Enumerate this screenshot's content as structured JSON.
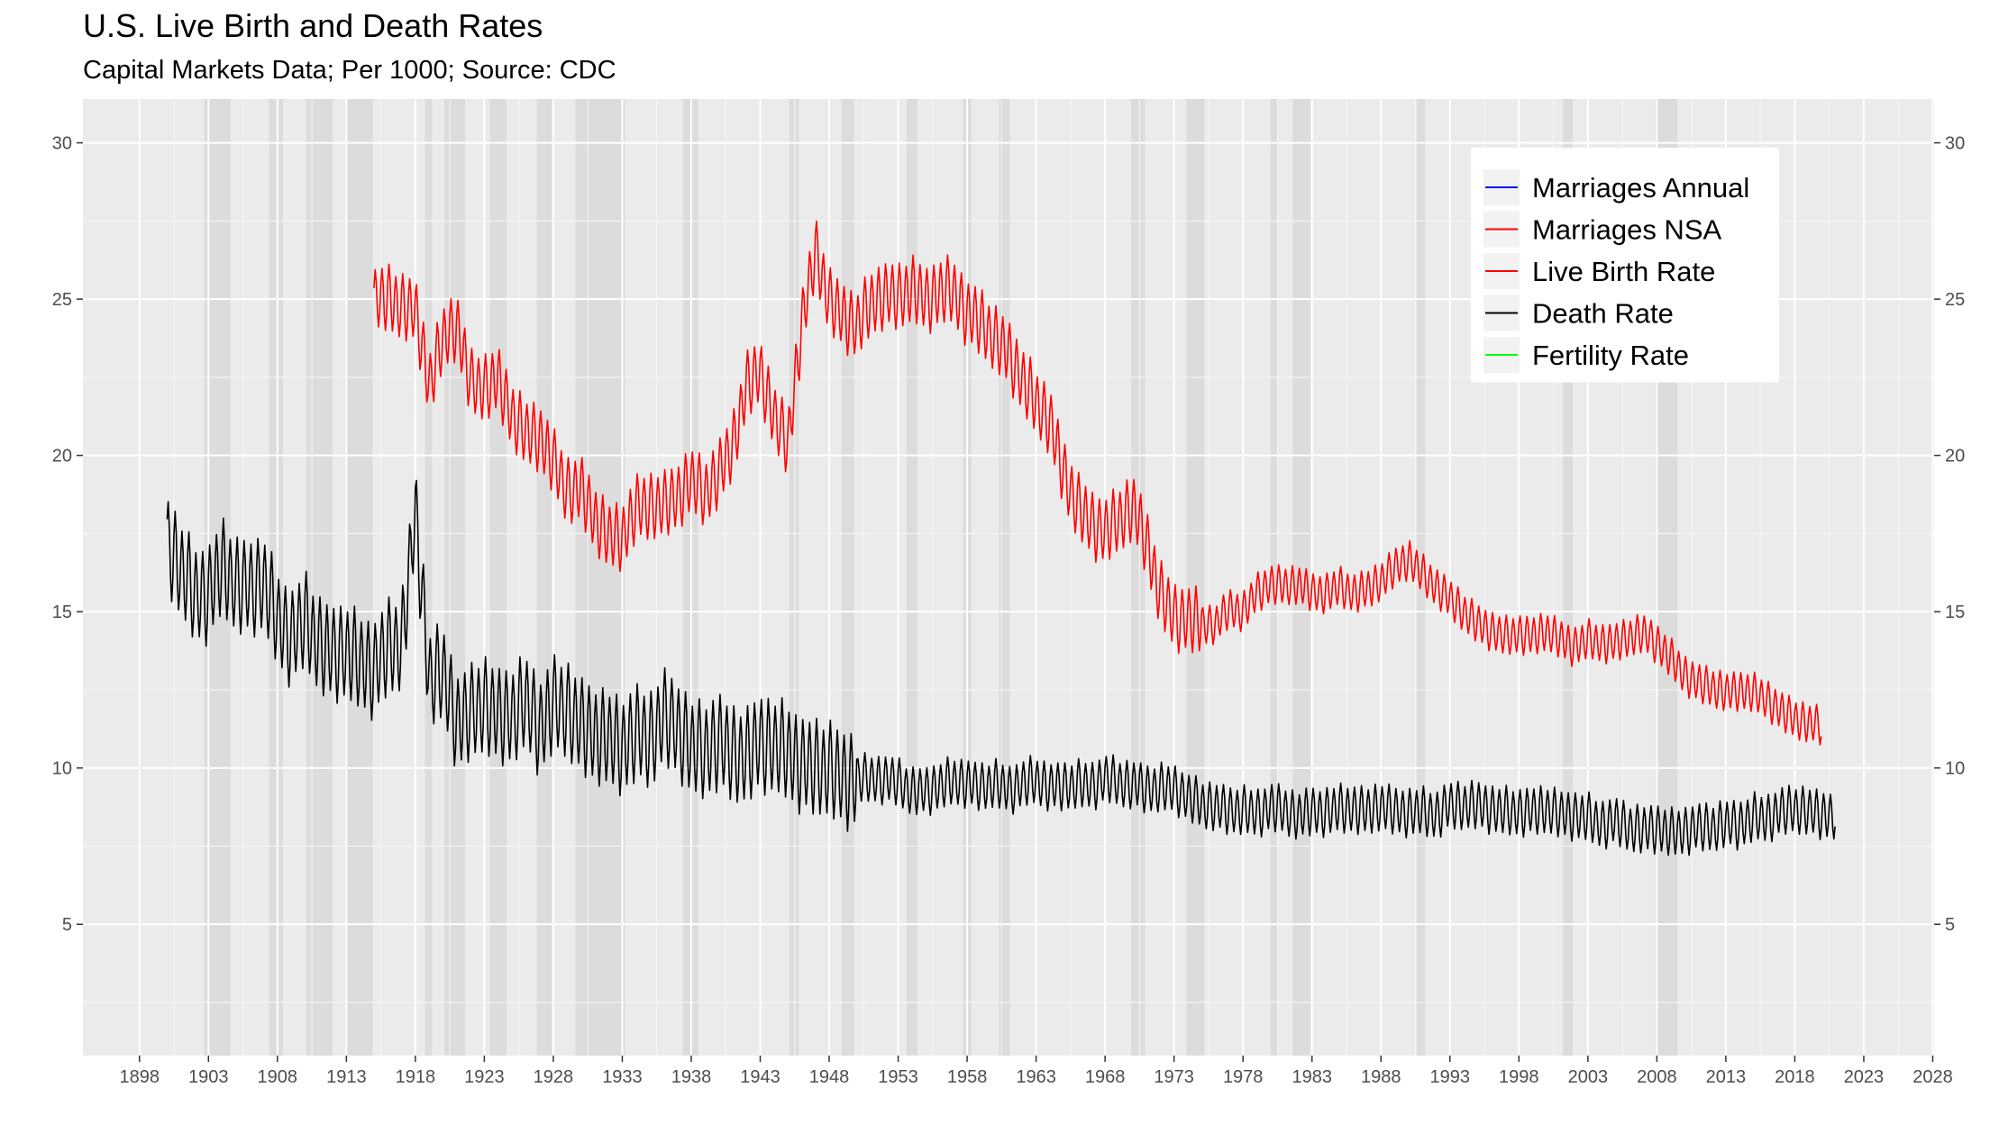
{
  "chart_data": {
    "type": "line",
    "title": "U.S. Live Birth and Death Rates",
    "subtitle": "Capital Markets Data; Per 1000; Source: CDC",
    "xlabel": "",
    "ylabel": "",
    "xlim": [
      1893.9,
      2028.1
    ],
    "ylim": [
      0.8,
      31.4
    ],
    "x_ticks": [
      1898,
      1903,
      1908,
      1913,
      1918,
      1923,
      1928,
      1933,
      1938,
      1943,
      1948,
      1953,
      1958,
      1963,
      1968,
      1973,
      1978,
      1983,
      1988,
      1993,
      1998,
      2003,
      2008,
      2013,
      2018,
      2023,
      2028
    ],
    "x_tick_labels": [
      "1898",
      "1903",
      "1908",
      "1913",
      "1918",
      "1923",
      "1928",
      "1933",
      "1938",
      "1943",
      "1948",
      "1953",
      "1958",
      "1963",
      "1968",
      "1973",
      "1978",
      "1983",
      "1988",
      "1993",
      "1998",
      "2003",
      "2008",
      "2013",
      "2018",
      "2023",
      "2028"
    ],
    "y_ticks": [
      5,
      10,
      15,
      20,
      25,
      30
    ],
    "y_tick_labels": [
      "5",
      "10",
      "15",
      "20",
      "25",
      "30"
    ],
    "grid": true,
    "legend_position": "top-right",
    "recession_shading": [
      [
        1902.7,
        1904.6
      ],
      [
        1907.4,
        1908.4
      ],
      [
        1910.1,
        1912.0
      ],
      [
        1913.0,
        1914.9
      ],
      [
        1918.7,
        1919.2
      ],
      [
        1920.1,
        1921.6
      ],
      [
        1923.4,
        1924.6
      ],
      [
        1926.8,
        1927.9
      ],
      [
        1929.6,
        1933.2
      ],
      [
        1937.4,
        1938.5
      ],
      [
        1945.1,
        1945.8
      ],
      [
        1948.9,
        1949.8
      ],
      [
        1953.6,
        1954.4
      ],
      [
        1957.7,
        1958.3
      ],
      [
        1960.3,
        1961.1
      ],
      [
        1969.9,
        1970.9
      ],
      [
        1973.9,
        1975.2
      ],
      [
        1980.0,
        1980.5
      ],
      [
        1981.6,
        1982.9
      ],
      [
        1990.6,
        1991.2
      ],
      [
        2001.2,
        2001.9
      ],
      [
        2007.9,
        2009.5
      ]
    ],
    "series": [
      {
        "name": "Marriages Annual",
        "color": "#0000ff",
        "values": []
      },
      {
        "name": "Marriages NSA",
        "color": "#ff0000",
        "values": []
      },
      {
        "name": "Live Birth Rate",
        "color": "#ff0000",
        "x": [
          1915,
          1916,
          1917,
          1918,
          1919,
          1920,
          1921,
          1922,
          1923,
          1924,
          1925,
          1926,
          1927,
          1928,
          1929,
          1930,
          1931,
          1932,
          1933,
          1934,
          1935,
          1936,
          1937,
          1938,
          1939,
          1940,
          1941,
          1942,
          1943,
          1944,
          1945,
          1946,
          1947,
          1948,
          1949,
          1950,
          1951,
          1952,
          1953,
          1954,
          1955,
          1956,
          1957,
          1958,
          1959,
          1960,
          1961,
          1962,
          1963,
          1964,
          1965,
          1966,
          1967,
          1968,
          1969,
          1970,
          1971,
          1972,
          1973,
          1974,
          1975,
          1976,
          1977,
          1978,
          1979,
          1980,
          1981,
          1982,
          1983,
          1984,
          1985,
          1986,
          1987,
          1988,
          1989,
          1990,
          1991,
          1992,
          1993,
          1994,
          1995,
          1996,
          1997,
          1998,
          1999,
          2000,
          2001,
          2002,
          2003,
          2004,
          2005,
          2006,
          2007,
          2008,
          2009,
          2010,
          2011,
          2012,
          2013,
          2014,
          2015,
          2016,
          2017,
          2018,
          2019
        ],
        "values": [
          25.0,
          25.0,
          24.8,
          24.6,
          22.3,
          23.7,
          24.2,
          22.3,
          22.2,
          22.4,
          21.3,
          20.7,
          20.6,
          19.8,
          18.9,
          18.9,
          18.0,
          17.4,
          17.4,
          18.3,
          18.4,
          18.4,
          18.7,
          19.2,
          18.8,
          19.4,
          20.3,
          22.2,
          22.7,
          21.2,
          20.4,
          24.1,
          26.6,
          24.9,
          24.5,
          24.1,
          24.9,
          25.1,
          25.1,
          25.3,
          25.0,
          25.2,
          25.3,
          24.5,
          24.3,
          23.7,
          23.3,
          22.4,
          21.7,
          21.1,
          19.4,
          18.4,
          17.8,
          17.6,
          17.9,
          18.4,
          17.2,
          15.6,
          14.8,
          14.8,
          14.6,
          14.6,
          15.1,
          15.0,
          15.6,
          15.9,
          15.8,
          15.9,
          15.6,
          15.6,
          15.8,
          15.6,
          15.7,
          16.0,
          16.4,
          16.7,
          16.2,
          15.8,
          15.4,
          15.0,
          14.6,
          14.4,
          14.2,
          14.3,
          14.2,
          14.4,
          14.1,
          13.9,
          14.1,
          14.0,
          14.0,
          14.2,
          14.3,
          14.0,
          13.5,
          13.0,
          12.7,
          12.6,
          12.4,
          12.5,
          12.4,
          12.2,
          11.8,
          11.6,
          11.4
        ]
      },
      {
        "name": "Death Rate",
        "color": "#000000",
        "x": [
          1900,
          1901,
          1902,
          1903,
          1904,
          1905,
          1906,
          1907,
          1908,
          1909,
          1910,
          1911,
          1912,
          1913,
          1914,
          1915,
          1916,
          1917,
          1918,
          1919,
          1920,
          1921,
          1922,
          1923,
          1924,
          1925,
          1926,
          1927,
          1928,
          1929,
          1930,
          1931,
          1932,
          1933,
          1934,
          1935,
          1936,
          1937,
          1938,
          1939,
          1940,
          1941,
          1942,
          1943,
          1944,
          1945,
          1946,
          1947,
          1948,
          1949,
          1950,
          1951,
          1952,
          1953,
          1954,
          1955,
          1956,
          1957,
          1958,
          1959,
          1960,
          1961,
          1962,
          1963,
          1964,
          1965,
          1966,
          1967,
          1968,
          1969,
          1970,
          1971,
          1972,
          1973,
          1974,
          1975,
          1976,
          1977,
          1978,
          1979,
          1980,
          1981,
          1982,
          1983,
          1984,
          1985,
          1986,
          1987,
          1988,
          1989,
          1990,
          1991,
          1992,
          1993,
          1994,
          1995,
          1996,
          1997,
          1998,
          1999,
          2000,
          2001,
          2002,
          2003,
          2004,
          2005,
          2006,
          2007,
          2008,
          2009,
          2010,
          2011,
          2012,
          2013,
          2014,
          2015,
          2016,
          2017,
          2018,
          2019,
          2020
        ],
        "values": [
          17.2,
          16.4,
          15.5,
          15.6,
          16.4,
          15.9,
          15.7,
          16.0,
          14.7,
          14.2,
          14.7,
          14.0,
          13.6,
          13.8,
          13.3,
          13.2,
          13.8,
          14.0,
          18.1,
          12.9,
          13.0,
          11.5,
          11.7,
          12.1,
          11.6,
          11.7,
          12.1,
          11.3,
          12.0,
          11.9,
          11.3,
          11.1,
          10.9,
          10.7,
          11.1,
          10.9,
          11.6,
          11.3,
          10.6,
          10.6,
          10.8,
          10.5,
          10.3,
          10.9,
          10.6,
          10.6,
          10.0,
          10.1,
          9.9,
          9.7,
          9.6,
          9.7,
          9.6,
          9.6,
          9.2,
          9.3,
          9.4,
          9.6,
          9.5,
          9.4,
          9.5,
          9.3,
          9.5,
          9.6,
          9.4,
          9.4,
          9.5,
          9.4,
          9.7,
          9.5,
          9.5,
          9.3,
          9.4,
          9.3,
          9.1,
          8.8,
          8.8,
          8.6,
          8.7,
          8.5,
          8.8,
          8.6,
          8.5,
          8.6,
          8.6,
          8.7,
          8.7,
          8.6,
          8.8,
          8.6,
          8.6,
          8.6,
          8.5,
          8.8,
          8.8,
          8.8,
          8.7,
          8.6,
          8.6,
          8.6,
          8.7,
          8.5,
          8.5,
          8.4,
          8.2,
          8.3,
          8.1,
          8.0,
          8.1,
          7.9,
          8.0,
          8.1,
          8.1,
          8.2,
          8.2,
          8.4,
          8.4,
          8.6,
          8.7,
          8.6,
          8.5
        ]
      },
      {
        "name": "Fertility Rate",
        "color": "#00ff00",
        "values": []
      }
    ]
  }
}
